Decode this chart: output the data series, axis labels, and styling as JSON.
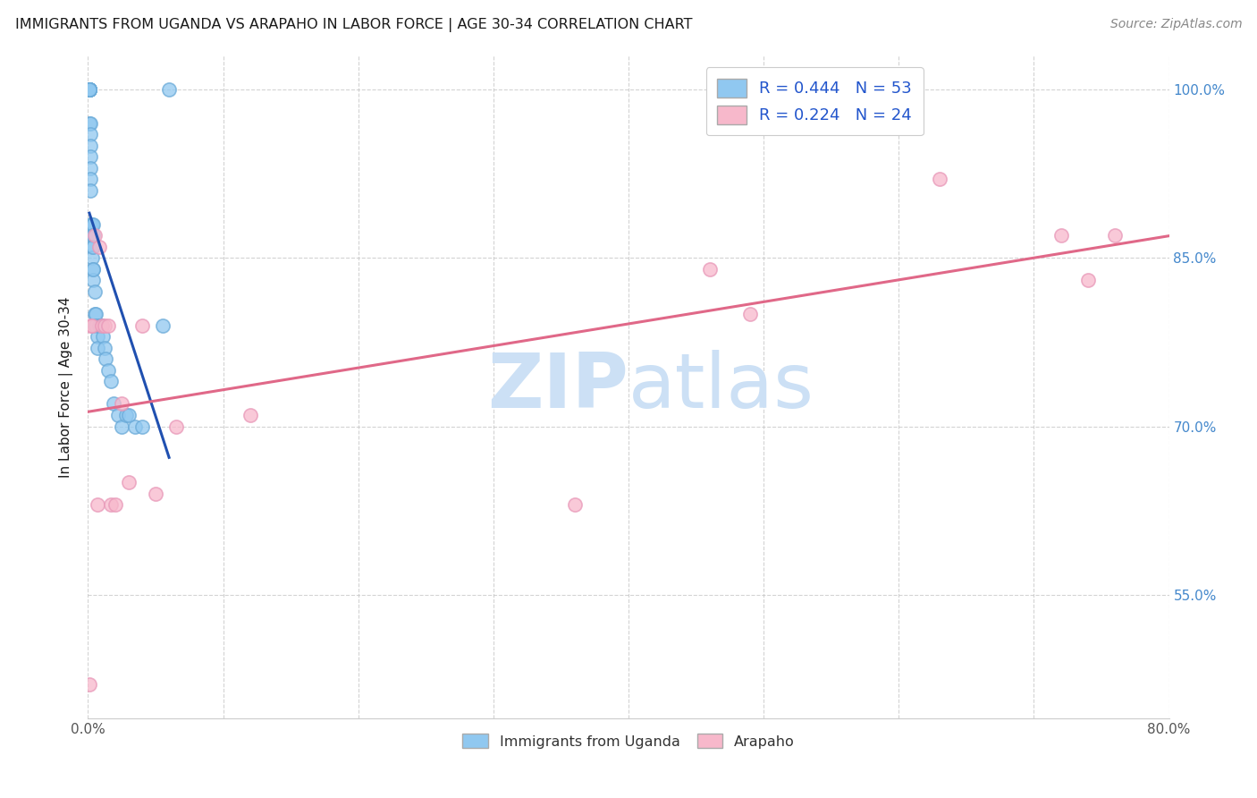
{
  "title": "IMMIGRANTS FROM UGANDA VS ARAPAHO IN LABOR FORCE | AGE 30-34 CORRELATION CHART",
  "source": "Source: ZipAtlas.com",
  "ylabel": "In Labor Force | Age 30-34",
  "xlim": [
    0.0,
    0.8
  ],
  "ylim": [
    0.44,
    1.03
  ],
  "xticks": [
    0.0,
    0.1,
    0.2,
    0.3,
    0.4,
    0.5,
    0.6,
    0.7,
    0.8
  ],
  "xticklabels": [
    "0.0%",
    "",
    "",
    "",
    "",
    "",
    "",
    "",
    "80.0%"
  ],
  "yticks": [
    0.55,
    0.7,
    0.85,
    1.0
  ],
  "yticklabels": [
    "55.0%",
    "70.0%",
    "85.0%",
    "100.0%"
  ],
  "watermark_zip": "ZIP",
  "watermark_atlas": "atlas",
  "legend_entries": [
    {
      "label": "R = 0.444   N = 53",
      "color": "#90c8f0"
    },
    {
      "label": "R = 0.224   N = 24",
      "color": "#f7b8cb"
    }
  ],
  "legend_bottom": [
    {
      "label": "Immigrants from Uganda",
      "color": "#90c8f0"
    },
    {
      "label": "Arapaho",
      "color": "#f7b8cb"
    }
  ],
  "uganda_x": [
    0.001,
    0.001,
    0.001,
    0.001,
    0.001,
    0.001,
    0.001,
    0.001,
    0.001,
    0.001,
    0.001,
    0.002,
    0.002,
    0.002,
    0.002,
    0.002,
    0.002,
    0.002,
    0.002,
    0.003,
    0.003,
    0.003,
    0.003,
    0.004,
    0.004,
    0.004,
    0.004,
    0.004,
    0.004,
    0.005,
    0.005,
    0.005,
    0.006,
    0.006,
    0.007,
    0.007,
    0.008,
    0.009,
    0.01,
    0.011,
    0.012,
    0.013,
    0.015,
    0.017,
    0.019,
    0.022,
    0.025,
    0.028,
    0.03,
    0.035,
    0.04,
    0.055,
    0.06
  ],
  "uganda_y": [
    1.0,
    1.0,
    1.0,
    1.0,
    1.0,
    1.0,
    1.0,
    1.0,
    1.0,
    1.0,
    0.97,
    0.97,
    0.96,
    0.95,
    0.94,
    0.93,
    0.92,
    0.91,
    0.88,
    0.88,
    0.87,
    0.86,
    0.85,
    0.84,
    0.83,
    0.88,
    0.87,
    0.86,
    0.84,
    0.82,
    0.8,
    0.79,
    0.8,
    0.79,
    0.78,
    0.77,
    0.79,
    0.79,
    0.79,
    0.78,
    0.77,
    0.76,
    0.75,
    0.74,
    0.72,
    0.71,
    0.7,
    0.71,
    0.71,
    0.7,
    0.7,
    0.79,
    1.0
  ],
  "arapaho_x": [
    0.001,
    0.002,
    0.003,
    0.005,
    0.007,
    0.008,
    0.01,
    0.012,
    0.015,
    0.017,
    0.02,
    0.025,
    0.03,
    0.04,
    0.05,
    0.065,
    0.12,
    0.36,
    0.46,
    0.49,
    0.63,
    0.72,
    0.74,
    0.76
  ],
  "arapaho_y": [
    0.47,
    0.79,
    0.79,
    0.87,
    0.63,
    0.86,
    0.79,
    0.79,
    0.79,
    0.63,
    0.63,
    0.72,
    0.65,
    0.79,
    0.64,
    0.7,
    0.71,
    0.63,
    0.84,
    0.8,
    0.92,
    0.87,
    0.83,
    0.87
  ],
  "uganda_color": "#90c8f0",
  "arapaho_color": "#f7b8cb",
  "uganda_edge_color": "#6aaad8",
  "arapaho_edge_color": "#e898b8",
  "uganda_line_color": "#2050b0",
  "arapaho_line_color": "#e06888",
  "background_color": "#ffffff",
  "grid_color": "#c8c8c8",
  "title_color": "#1a1a1a",
  "source_color": "#888888",
  "ylabel_color": "#1a1a1a",
  "yticklabel_color": "#4488cc",
  "watermark_color": "#cce0f5",
  "marker_size": 120,
  "marker_lw": 1.2
}
